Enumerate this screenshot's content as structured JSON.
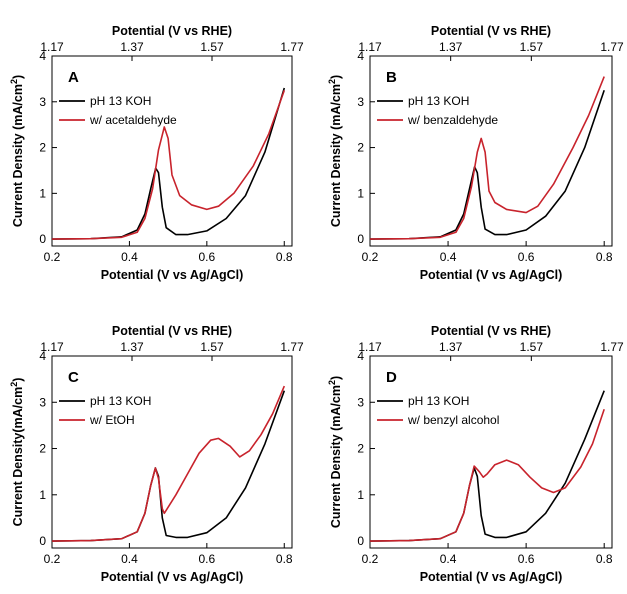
{
  "figure": {
    "top_axis_title": "Potential (V vs RHE)",
    "top_ticks": [
      "1.17",
      "1.37",
      "1.57",
      "1.77"
    ],
    "colors": {
      "koh": "#000000",
      "organic": "#c8232c"
    }
  },
  "chart_data": [
    {
      "type": "line",
      "panel": "A",
      "title": "",
      "xlabel": "Potential (V vs Ag/AgCl)",
      "ylabel": "Current Density (mA/cm²)",
      "ylabel_parts": [
        "Current Density (mA/cm",
        "2",
        ")"
      ],
      "xlim": [
        0.2,
        0.82
      ],
      "ylim": [
        -0.15,
        4
      ],
      "xticks": [
        "0.2",
        "0.4",
        "0.6",
        "0.8"
      ],
      "yticks": [
        "0",
        "1",
        "2",
        "3",
        "4"
      ],
      "legend_position": "top-left",
      "series": [
        {
          "name": "pH 13 KOH",
          "color": "#000000",
          "points": [
            [
              0.2,
              0
            ],
            [
              0.3,
              0.01
            ],
            [
              0.38,
              0.05
            ],
            [
              0.42,
              0.2
            ],
            [
              0.44,
              0.55
            ],
            [
              0.455,
              1.1
            ],
            [
              0.468,
              1.55
            ],
            [
              0.475,
              1.45
            ],
            [
              0.485,
              0.7
            ],
            [
              0.495,
              0.25
            ],
            [
              0.52,
              0.1
            ],
            [
              0.55,
              0.1
            ],
            [
              0.6,
              0.18
            ],
            [
              0.65,
              0.45
            ],
            [
              0.7,
              0.95
            ],
            [
              0.75,
              1.9
            ],
            [
              0.8,
              3.3
            ]
          ]
        },
        {
          "name": "w/ acetaldehyde",
          "color": "#c8232c",
          "points": [
            [
              0.2,
              0
            ],
            [
              0.3,
              0.01
            ],
            [
              0.38,
              0.04
            ],
            [
              0.42,
              0.15
            ],
            [
              0.44,
              0.45
            ],
            [
              0.46,
              1.1
            ],
            [
              0.475,
              1.95
            ],
            [
              0.49,
              2.45
            ],
            [
              0.5,
              2.2
            ],
            [
              0.51,
              1.4
            ],
            [
              0.53,
              0.95
            ],
            [
              0.56,
              0.75
            ],
            [
              0.6,
              0.65
            ],
            [
              0.63,
              0.72
            ],
            [
              0.67,
              1.0
            ],
            [
              0.72,
              1.6
            ],
            [
              0.76,
              2.3
            ],
            [
              0.8,
              3.25
            ]
          ]
        }
      ]
    },
    {
      "type": "line",
      "panel": "B",
      "title": "",
      "xlabel": "Potential (V vs Ag/AgCl)",
      "ylabel": "Current Density (mA/cm²)",
      "ylabel_parts": [
        "Current Density (mA/cm",
        "2",
        ")"
      ],
      "xlim": [
        0.2,
        0.82
      ],
      "ylim": [
        -0.15,
        4
      ],
      "xticks": [
        "0.2",
        "0.4",
        "0.6",
        "0.8"
      ],
      "yticks": [
        "0",
        "1",
        "2",
        "3",
        "4"
      ],
      "legend_position": "top-left",
      "series": [
        {
          "name": "pH 13 KOH",
          "color": "#000000",
          "points": [
            [
              0.2,
              0
            ],
            [
              0.3,
              0.01
            ],
            [
              0.38,
              0.05
            ],
            [
              0.42,
              0.2
            ],
            [
              0.44,
              0.55
            ],
            [
              0.455,
              1.1
            ],
            [
              0.468,
              1.58
            ],
            [
              0.475,
              1.45
            ],
            [
              0.485,
              0.7
            ],
            [
              0.495,
              0.22
            ],
            [
              0.52,
              0.1
            ],
            [
              0.55,
              0.1
            ],
            [
              0.6,
              0.2
            ],
            [
              0.65,
              0.5
            ],
            [
              0.7,
              1.05
            ],
            [
              0.75,
              2.0
            ],
            [
              0.8,
              3.25
            ]
          ]
        },
        {
          "name": "w/ benzaldehyde",
          "color": "#c8232c",
          "points": [
            [
              0.2,
              0
            ],
            [
              0.3,
              0.01
            ],
            [
              0.38,
              0.04
            ],
            [
              0.42,
              0.15
            ],
            [
              0.44,
              0.45
            ],
            [
              0.46,
              1.15
            ],
            [
              0.475,
              1.9
            ],
            [
              0.485,
              2.2
            ],
            [
              0.495,
              1.9
            ],
            [
              0.505,
              1.05
            ],
            [
              0.52,
              0.8
            ],
            [
              0.55,
              0.65
            ],
            [
              0.6,
              0.58
            ],
            [
              0.63,
              0.72
            ],
            [
              0.67,
              1.2
            ],
            [
              0.72,
              2.0
            ],
            [
              0.76,
              2.7
            ],
            [
              0.8,
              3.55
            ]
          ]
        }
      ]
    },
    {
      "type": "line",
      "panel": "C",
      "title": "",
      "xlabel": "Potential (V vs Ag/AgCl)",
      "ylabel": "Current Density(mA/cm²)",
      "ylabel_parts": [
        "Current Density(mA/cm",
        "2",
        ")"
      ],
      "xlim": [
        0.2,
        0.82
      ],
      "ylim": [
        -0.15,
        4
      ],
      "xticks": [
        "0.2",
        "0.4",
        "0.6",
        "0.8"
      ],
      "yticks": [
        "0",
        "1",
        "2",
        "3",
        "4"
      ],
      "legend_position": "top-left",
      "series": [
        {
          "name": "pH 13 KOH",
          "color": "#000000",
          "points": [
            [
              0.2,
              0
            ],
            [
              0.3,
              0.01
            ],
            [
              0.38,
              0.05
            ],
            [
              0.42,
              0.2
            ],
            [
              0.44,
              0.6
            ],
            [
              0.455,
              1.2
            ],
            [
              0.467,
              1.58
            ],
            [
              0.475,
              1.4
            ],
            [
              0.485,
              0.5
            ],
            [
              0.495,
              0.12
            ],
            [
              0.52,
              0.08
            ],
            [
              0.55,
              0.08
            ],
            [
              0.6,
              0.18
            ],
            [
              0.65,
              0.5
            ],
            [
              0.7,
              1.15
            ],
            [
              0.75,
              2.1
            ],
            [
              0.8,
              3.25
            ]
          ]
        },
        {
          "name": "w/ EtOH",
          "color": "#c8232c",
          "points": [
            [
              0.2,
              0
            ],
            [
              0.3,
              0.01
            ],
            [
              0.38,
              0.05
            ],
            [
              0.42,
              0.2
            ],
            [
              0.44,
              0.6
            ],
            [
              0.455,
              1.2
            ],
            [
              0.467,
              1.58
            ],
            [
              0.475,
              1.35
            ],
            [
              0.485,
              0.7
            ],
            [
              0.49,
              0.6
            ],
            [
              0.52,
              1.0
            ],
            [
              0.55,
              1.45
            ],
            [
              0.58,
              1.9
            ],
            [
              0.61,
              2.18
            ],
            [
              0.63,
              2.22
            ],
            [
              0.66,
              2.05
            ],
            [
              0.685,
              1.82
            ],
            [
              0.71,
              1.95
            ],
            [
              0.74,
              2.3
            ],
            [
              0.77,
              2.75
            ],
            [
              0.8,
              3.35
            ]
          ]
        }
      ]
    },
    {
      "type": "line",
      "panel": "D",
      "title": "",
      "xlabel": "Potential (V vs Ag/AgCl)",
      "ylabel": "Current Density (mA/cm²)",
      "ylabel_parts": [
        "Current Density (mA/cm",
        "2",
        ")"
      ],
      "xlim": [
        0.2,
        0.82
      ],
      "ylim": [
        -0.15,
        4
      ],
      "xticks": [
        "0.2",
        "0.4",
        "0.6",
        "0.8"
      ],
      "yticks": [
        "0",
        "1",
        "2",
        "3",
        "4"
      ],
      "legend_position": "top-left",
      "series": [
        {
          "name": "pH 13 KOH",
          "color": "#000000",
          "points": [
            [
              0.2,
              0
            ],
            [
              0.3,
              0.01
            ],
            [
              0.38,
              0.05
            ],
            [
              0.42,
              0.2
            ],
            [
              0.44,
              0.6
            ],
            [
              0.455,
              1.2
            ],
            [
              0.467,
              1.58
            ],
            [
              0.475,
              1.4
            ],
            [
              0.485,
              0.55
            ],
            [
              0.495,
              0.15
            ],
            [
              0.52,
              0.08
            ],
            [
              0.55,
              0.08
            ],
            [
              0.6,
              0.2
            ],
            [
              0.65,
              0.6
            ],
            [
              0.7,
              1.25
            ],
            [
              0.75,
              2.2
            ],
            [
              0.8,
              3.25
            ]
          ]
        },
        {
          "name": "w/ benzyl alcohol",
          "color": "#c8232c",
          "points": [
            [
              0.2,
              0
            ],
            [
              0.3,
              0.01
            ],
            [
              0.38,
              0.05
            ],
            [
              0.42,
              0.2
            ],
            [
              0.44,
              0.6
            ],
            [
              0.455,
              1.2
            ],
            [
              0.467,
              1.62
            ],
            [
              0.48,
              1.5
            ],
            [
              0.49,
              1.38
            ],
            [
              0.5,
              1.45
            ],
            [
              0.52,
              1.65
            ],
            [
              0.55,
              1.75
            ],
            [
              0.58,
              1.65
            ],
            [
              0.61,
              1.38
            ],
            [
              0.64,
              1.15
            ],
            [
              0.67,
              1.05
            ],
            [
              0.7,
              1.15
            ],
            [
              0.74,
              1.6
            ],
            [
              0.77,
              2.1
            ],
            [
              0.8,
              2.85
            ]
          ]
        }
      ]
    }
  ]
}
